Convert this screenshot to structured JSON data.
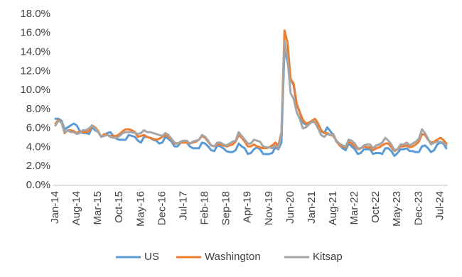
{
  "chart_data": {
    "type": "line",
    "categories": [
      "Jan-14",
      null,
      null,
      null,
      null,
      null,
      null,
      "Aug-14",
      null,
      null,
      null,
      null,
      null,
      null,
      "Mar-15",
      null,
      null,
      null,
      null,
      null,
      null,
      "Oct-15",
      null,
      null,
      null,
      null,
      null,
      null,
      "May-16",
      null,
      null,
      null,
      null,
      null,
      null,
      "Dec-16",
      null,
      null,
      null,
      null,
      null,
      null,
      "Jul-17",
      null,
      null,
      null,
      null,
      null,
      null,
      "Feb-18",
      null,
      null,
      null,
      null,
      null,
      null,
      "Sep-18",
      null,
      null,
      null,
      null,
      null,
      null,
      "Apr-19",
      null,
      null,
      null,
      null,
      null,
      null,
      "Nov-19",
      null,
      null,
      null,
      null,
      null,
      null,
      "Jun-20",
      null,
      null,
      null,
      null,
      null,
      null,
      "Jan-21",
      null,
      null,
      null,
      null,
      null,
      null,
      "Aug-21",
      null,
      null,
      null,
      null,
      null,
      null,
      "Mar-22",
      null,
      null,
      null,
      null,
      null,
      null,
      "Oct-22",
      null,
      null,
      null,
      null,
      null,
      null,
      "May-23",
      null,
      null,
      null,
      null,
      null,
      null,
      "Dec-23",
      null,
      null,
      null,
      null,
      null,
      null,
      "Jul-24",
      null,
      null
    ],
    "series": [
      {
        "name": "US",
        "color": "#5b9bd5",
        "values": [
          7.0,
          7.0,
          6.8,
          5.9,
          6.1,
          6.3,
          6.5,
          6.3,
          5.7,
          5.5,
          5.5,
          5.4,
          6.1,
          5.8,
          5.6,
          5.1,
          5.3,
          5.5,
          5.6,
          5.2,
          4.9,
          4.8,
          4.8,
          4.8,
          5.3,
          5.2,
          5.1,
          4.7,
          4.5,
          5.1,
          5.1,
          5.0,
          4.8,
          4.7,
          4.4,
          4.5,
          5.1,
          4.9,
          4.6,
          4.1,
          4.1,
          4.5,
          4.6,
          4.5,
          4.1,
          3.9,
          3.9,
          3.9,
          4.5,
          4.4,
          4.1,
          3.7,
          3.6,
          4.2,
          4.1,
          3.9,
          3.6,
          3.5,
          3.5,
          3.7,
          4.4,
          4.1,
          3.9,
          3.3,
          3.4,
          3.8,
          4.0,
          3.8,
          3.3,
          3.3,
          3.3,
          3.4,
          4.0,
          3.8,
          4.5,
          14.4,
          13.0,
          11.2,
          10.5,
          8.5,
          7.7,
          6.6,
          6.4,
          6.5,
          6.8,
          6.6,
          6.2,
          5.7,
          5.5,
          6.1,
          5.7,
          5.3,
          4.6,
          4.3,
          3.9,
          3.7,
          4.4,
          4.1,
          3.8,
          3.3,
          3.4,
          3.8,
          3.8,
          3.8,
          3.3,
          3.4,
          3.4,
          3.3,
          3.9,
          3.9,
          3.6,
          3.1,
          3.4,
          3.8,
          3.8,
          3.9,
          3.6,
          3.6,
          3.5,
          3.5,
          4.1,
          4.2,
          3.9,
          3.5,
          3.7,
          4.3,
          4.5,
          4.4,
          3.9
        ]
      },
      {
        "name": "Washington",
        "color": "#ed7d31",
        "values": [
          6.5,
          6.9,
          6.6,
          5.5,
          5.8,
          5.8,
          5.7,
          5.5,
          5.7,
          5.6,
          5.6,
          5.7,
          6.3,
          6.1,
          5.7,
          5.1,
          5.4,
          5.3,
          5.2,
          5.2,
          5.2,
          5.4,
          5.7,
          5.9,
          5.9,
          5.8,
          5.6,
          5.1,
          5.2,
          5.3,
          5.1,
          5.0,
          4.9,
          4.8,
          4.9,
          5.1,
          5.3,
          5.1,
          4.8,
          4.4,
          4.4,
          4.5,
          4.5,
          4.5,
          4.4,
          4.5,
          4.6,
          4.8,
          5.2,
          5.0,
          4.6,
          4.2,
          4.1,
          4.3,
          4.3,
          4.2,
          4.1,
          4.2,
          4.3,
          4.6,
          5.3,
          5.0,
          4.6,
          4.1,
          4.1,
          4.3,
          4.1,
          4.0,
          3.9,
          3.9,
          4.0,
          4.2,
          4.5,
          4.2,
          5.6,
          16.3,
          15.0,
          11.2,
          10.7,
          8.6,
          7.7,
          6.9,
          6.5,
          6.6,
          6.8,
          7.0,
          6.5,
          5.8,
          5.5,
          5.5,
          5.3,
          5.2,
          4.7,
          4.2,
          4.1,
          4.0,
          4.6,
          4.4,
          4.1,
          3.8,
          3.9,
          4.1,
          4.0,
          4.0,
          3.7,
          3.9,
          4.0,
          4.2,
          4.4,
          4.4,
          4.0,
          3.6,
          3.8,
          4.1,
          4.1,
          4.2,
          4.0,
          4.1,
          4.3,
          4.6,
          5.4,
          5.3,
          4.8,
          4.5,
          4.6,
          4.8,
          5.0,
          4.8,
          4.4
        ]
      },
      {
        "name": "Kitsap",
        "color": "#a5a5a5",
        "values": [
          6.3,
          6.8,
          6.6,
          5.6,
          5.8,
          5.6,
          5.6,
          5.4,
          5.5,
          5.8,
          5.8,
          6.0,
          6.3,
          6.0,
          5.6,
          5.1,
          5.2,
          5.3,
          5.1,
          5.0,
          5.0,
          5.2,
          5.5,
          5.6,
          5.6,
          5.6,
          5.5,
          5.4,
          5.5,
          5.8,
          5.6,
          5.6,
          5.5,
          5.4,
          5.3,
          5.2,
          5.5,
          5.3,
          4.9,
          4.5,
          4.4,
          4.6,
          4.7,
          4.7,
          4.4,
          4.6,
          4.7,
          4.8,
          5.3,
          5.1,
          4.7,
          4.2,
          4.1,
          4.5,
          4.5,
          4.3,
          4.2,
          4.4,
          4.6,
          4.7,
          5.6,
          5.2,
          4.8,
          4.4,
          4.4,
          4.8,
          4.7,
          4.6,
          4.1,
          4.0,
          4.0,
          3.9,
          4.2,
          3.9,
          5.5,
          15.2,
          13.3,
          9.7,
          9.1,
          7.7,
          7.0,
          6.0,
          6.1,
          6.4,
          6.7,
          6.6,
          6.0,
          5.3,
          5.1,
          5.4,
          5.3,
          5.4,
          4.7,
          4.4,
          4.2,
          4.1,
          4.8,
          4.7,
          4.4,
          3.9,
          3.9,
          4.2,
          4.3,
          4.3,
          3.9,
          4.2,
          4.3,
          4.5,
          5.0,
          4.7,
          4.3,
          3.7,
          3.8,
          4.3,
          4.3,
          4.5,
          4.2,
          4.4,
          4.6,
          4.9,
          5.9,
          5.5,
          4.9,
          4.3,
          4.5,
          4.6,
          4.6,
          4.5,
          4.2
        ]
      }
    ],
    "ylim": [
      0,
      18
    ],
    "yticks": [
      {
        "value": 0,
        "label": "0.0%"
      },
      {
        "value": 2,
        "label": "2.0%"
      },
      {
        "value": 4,
        "label": "4.0%"
      },
      {
        "value": 6,
        "label": "6.0%"
      },
      {
        "value": 8,
        "label": "8.0%"
      },
      {
        "value": 10,
        "label": "10.0%"
      },
      {
        "value": 12,
        "label": "12.0%"
      },
      {
        "value": 14,
        "label": "14.0%"
      },
      {
        "value": 16,
        "label": "16.0%"
      },
      {
        "value": 18,
        "label": "18.0%"
      }
    ],
    "grid": false,
    "legend": "bottom"
  }
}
